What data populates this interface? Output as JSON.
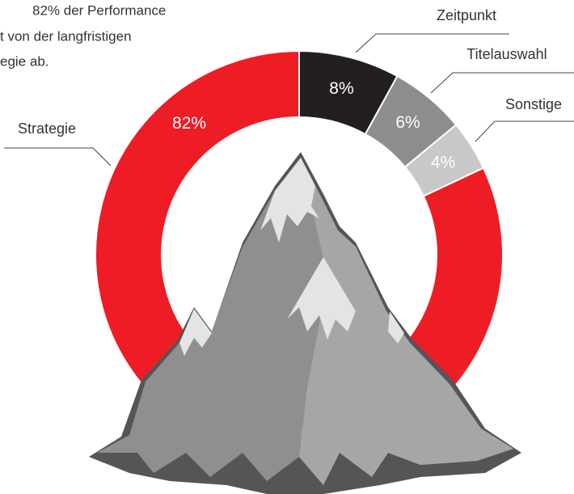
{
  "chart_data": {
    "type": "donut",
    "annotation_lines": [
      "82% der Performance",
      "t von der langfristigen",
      "egie ab."
    ],
    "categories": [
      "Zeitpunkt",
      "Titelauswahl",
      "Sonstige",
      "Strategie"
    ],
    "values": [
      8,
      6,
      4,
      82
    ],
    "value_labels": [
      "8%",
      "6%",
      "4%",
      "82%"
    ],
    "colors": [
      "#231f20",
      "#8d8d8e",
      "#c8c8c8",
      "#ee1c25"
    ]
  }
}
